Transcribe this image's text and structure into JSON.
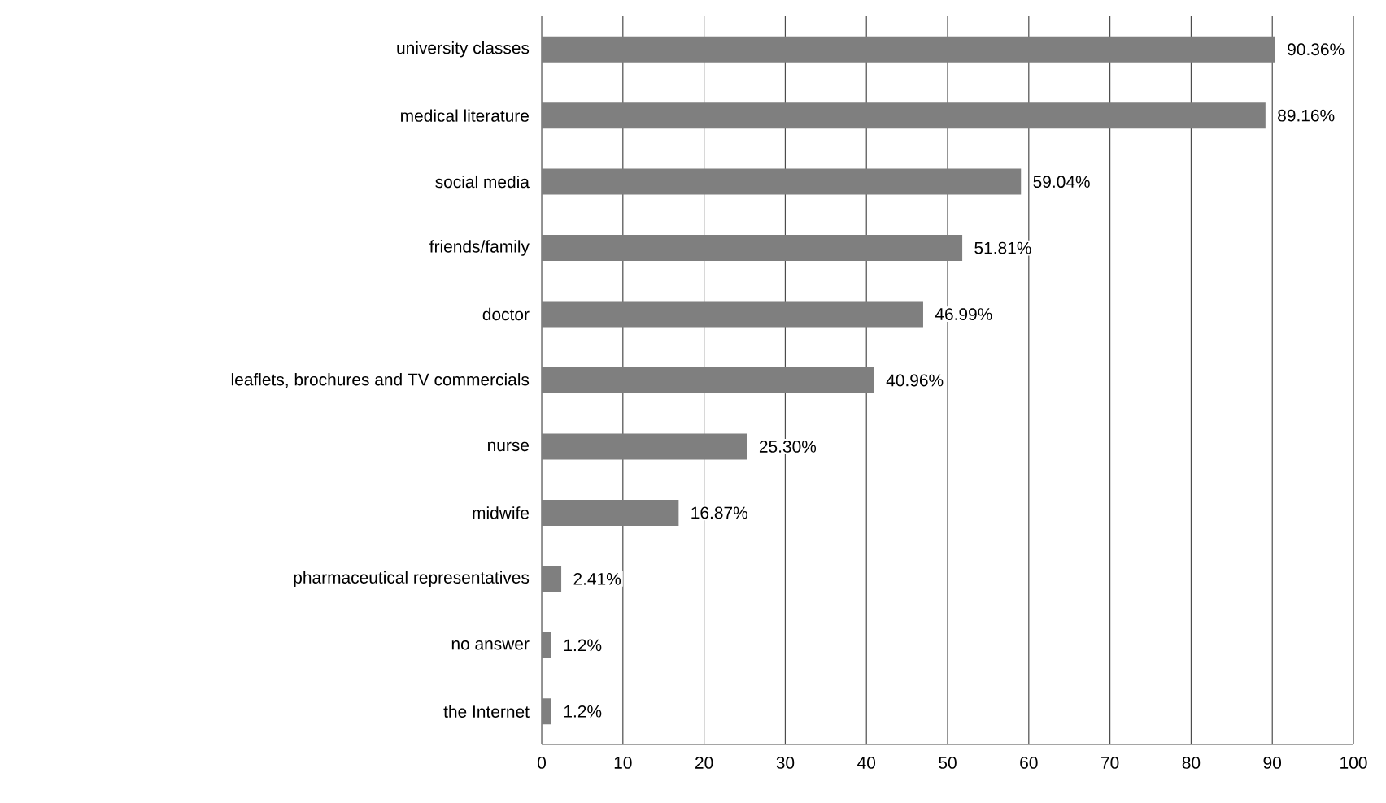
{
  "chart_data": {
    "type": "bar",
    "orientation": "horizontal",
    "categories": [
      "university classes",
      "medical literature",
      "social media",
      "friends/family",
      "doctor",
      "leaflets, brochures and TV commercials",
      "nurse",
      "midwife",
      "pharmaceutical representatives",
      "no answer",
      "the Internet"
    ],
    "values": [
      90.36,
      89.16,
      59.04,
      51.81,
      46.99,
      40.96,
      25.3,
      16.87,
      2.41,
      1.2,
      1.2
    ],
    "value_labels": [
      "90.36%",
      "89.16%",
      "59.04%",
      "51.81%",
      "46.99%",
      "40.96%",
      "25.30%",
      "16.87%",
      "2.41%",
      "1.2%",
      "1.2%"
    ],
    "color": "#7f7f7f",
    "xlim": [
      0,
      100
    ],
    "xticks": [
      0,
      10,
      20,
      30,
      40,
      50,
      60,
      70,
      80,
      90,
      100
    ],
    "grid": "x"
  }
}
